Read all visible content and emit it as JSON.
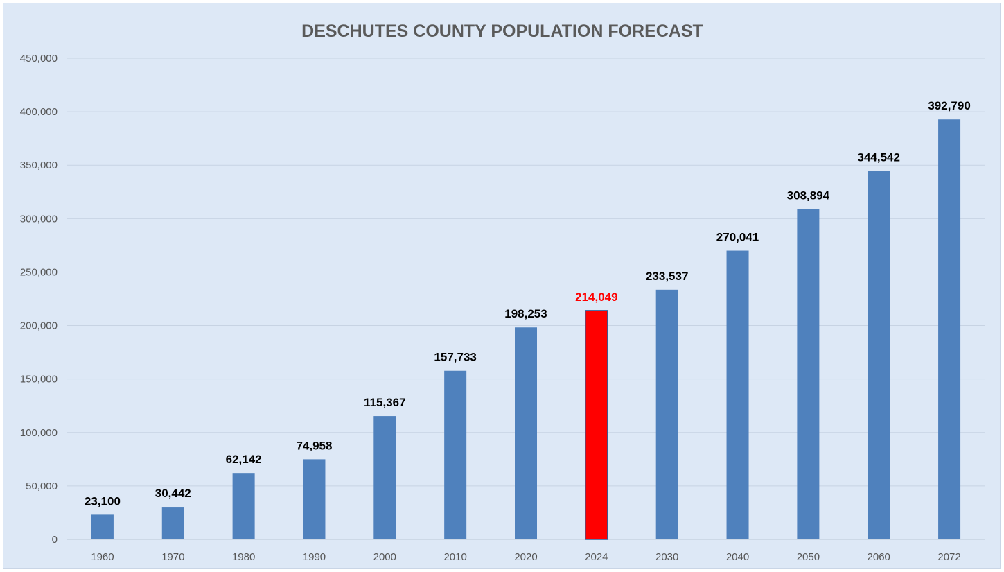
{
  "chart_data": {
    "type": "bar",
    "title": "DESCHUTES COUNTY POPULATION FORECAST",
    "xlabel": "",
    "ylabel": "",
    "categories": [
      "1960",
      "1970",
      "1980",
      "1990",
      "2000",
      "2010",
      "2020",
      "2024",
      "2030",
      "2040",
      "2050",
      "2060",
      "2072"
    ],
    "values": [
      23100,
      30442,
      62142,
      74958,
      115367,
      157733,
      198253,
      214049,
      233537,
      270041,
      308894,
      344542,
      392790
    ],
    "data_labels": [
      "23,100",
      "30,442",
      "62,142",
      "74,958",
      "115,367",
      "157,733",
      "198,253",
      "214,049",
      "233,537",
      "270,041",
      "308,894",
      "344,542",
      "392,790"
    ],
    "y_ticks": [
      "0",
      "50,000",
      "100,000",
      "150,000",
      "200,000",
      "250,000",
      "300,000",
      "350,000",
      "400,000",
      "450,000"
    ],
    "ylim": [
      0,
      450000
    ],
    "highlight_index": 7,
    "grid": true,
    "legend": "none",
    "colors": {
      "bar": "#4f81bd",
      "highlight_bar": "#ff0000",
      "highlight_label": "#ff0000",
      "label": "#000000",
      "background": "#dde8f6"
    }
  }
}
